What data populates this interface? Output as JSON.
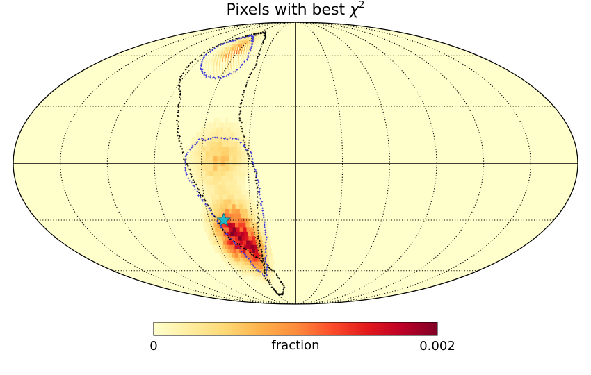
{
  "chart_data": {
    "type": "heatmap",
    "projection": "mollweide",
    "title": {
      "text": "Pixels with best ",
      "symbol": "χ",
      "superscript": "2"
    },
    "colorbar": {
      "label": "fraction",
      "min_label": "0",
      "max_label": "0.002",
      "range": [
        0,
        0.002
      ],
      "colormap": [
        "#ffffcc",
        "#ffeda0",
        "#fed976",
        "#feb24c",
        "#fd8d3c",
        "#fc4e2a",
        "#e31a1c",
        "#bd0026",
        "#800026"
      ]
    },
    "graticule": {
      "meridian_step_deg": 30,
      "parallel_step_deg": 30,
      "style": "dotted"
    },
    "hotspots": [
      {
        "lon": -65,
        "lat": 62,
        "sigma_lon": 9,
        "sigma_lat": 8,
        "value": 0.0009
      },
      {
        "lon": -50,
        "lat": 3,
        "sigma_lon": 10,
        "sigma_lat": 10,
        "value": 0.0006
      },
      {
        "lon": -45,
        "lat": -38,
        "sigma_lon": 9,
        "sigma_lat": 11,
        "value": 0.0017
      },
      {
        "lon": -33,
        "lat": -50,
        "sigma_lon": 5,
        "sigma_lat": 8,
        "value": 0.0011
      }
    ],
    "contours": [
      {
        "name": "outer",
        "color": "#000000",
        "points": [
          [
            -52,
            78
          ],
          [
            -63,
            77
          ],
          [
            -72,
            75
          ],
          [
            -82,
            72
          ],
          [
            -93,
            65
          ],
          [
            -95,
            55
          ],
          [
            -92,
            45
          ],
          [
            -83,
            35
          ],
          [
            -78,
            20
          ],
          [
            -72,
            5
          ],
          [
            -65,
            -10
          ],
          [
            -57,
            -25
          ],
          [
            -50,
            -40
          ],
          [
            -35,
            -50
          ],
          [
            -28,
            -55
          ],
          [
            -20,
            -62
          ],
          [
            -15,
            -72
          ],
          [
            -22,
            -78
          ],
          [
            -30,
            -78
          ],
          [
            -33,
            -65
          ],
          [
            -28,
            -55
          ],
          [
            -28,
            -40
          ],
          [
            -25,
            -25
          ],
          [
            -25,
            -5
          ],
          [
            -32,
            8
          ],
          [
            -35,
            18
          ],
          [
            -38,
            25
          ],
          [
            -38,
            35
          ],
          [
            -38,
            45
          ],
          [
            -35,
            55
          ],
          [
            -38,
            65
          ],
          [
            -42,
            73
          ],
          [
            -52,
            78
          ]
        ]
      },
      {
        "name": "inner-top",
        "color": "#3535d8",
        "points": [
          [
            -62,
            75
          ],
          [
            -75,
            73
          ],
          [
            -88,
            68
          ],
          [
            -90,
            60
          ],
          [
            -82,
            52
          ],
          [
            -72,
            47
          ],
          [
            -60,
            46
          ],
          [
            -50,
            50
          ],
          [
            -45,
            58
          ],
          [
            -50,
            67
          ],
          [
            -62,
            75
          ]
        ]
      },
      {
        "name": "inner-bottom",
        "color": "#3535d8",
        "points": [
          [
            -52,
            13
          ],
          [
            -62,
            12
          ],
          [
            -70,
            5
          ],
          [
            -70,
            -5
          ],
          [
            -64,
            -15
          ],
          [
            -58,
            -25
          ],
          [
            -52,
            -35
          ],
          [
            -48,
            -42
          ],
          [
            -42,
            -50
          ],
          [
            -38,
            -58
          ],
          [
            -32,
            -65
          ],
          [
            -28,
            -60
          ],
          [
            -25,
            -50
          ],
          [
            -22,
            -40
          ],
          [
            -22,
            -25
          ],
          [
            -24,
            -10
          ],
          [
            -28,
            5
          ],
          [
            -38,
            13
          ],
          [
            -52,
            13
          ]
        ]
      }
    ],
    "marker": {
      "lon": -50,
      "lat": -30,
      "shape": "star",
      "color": "#20b8c8"
    }
  }
}
